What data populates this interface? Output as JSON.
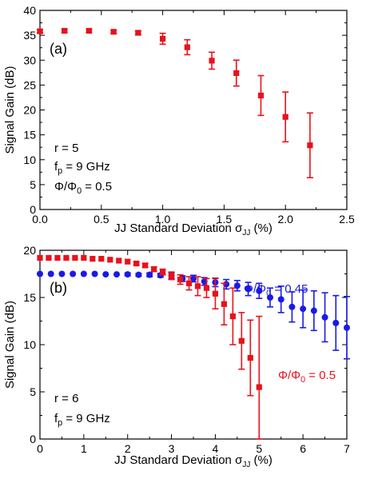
{
  "chart_data": [
    {
      "type": "scatter",
      "panel_label": "(a)",
      "xlabel": "JJ Standard Deviation",
      "xlabel_symbol": "σ",
      "xlabel_sub": "JJ",
      "xlabel_unit": "(%)",
      "ylabel": "Signal Gain (dB)",
      "xlim": [
        0,
        2.5
      ],
      "ylim": [
        0,
        40
      ],
      "xticks": [
        0,
        0.5,
        1.0,
        1.5,
        2.0,
        2.5
      ],
      "xtick_labels": [
        "0.0",
        "0.5",
        "1.0",
        "1.5",
        "2.0",
        "2.5"
      ],
      "yticks": [
        0,
        5,
        10,
        15,
        20,
        25,
        30,
        35,
        40
      ],
      "ytick_labels": [
        "0",
        "5",
        "10",
        "15",
        "20",
        "25",
        "30",
        "35",
        "40"
      ],
      "annotations": [
        {
          "text": "r = 5"
        },
        {
          "text": "f",
          "sub": "p",
          "rest": " = 9 GHz"
        },
        {
          "text": "Φ/Φ",
          "sub": "0",
          "rest": " = 0.5"
        }
      ],
      "series": [
        {
          "marker": "square",
          "color": "#e8121b",
          "x": [
            0.0,
            0.2,
            0.4,
            0.6,
            0.8,
            1.0,
            1.2,
            1.4,
            1.6,
            1.8,
            2.0,
            2.2
          ],
          "y": [
            35.8,
            35.9,
            35.9,
            35.7,
            35.5,
            34.3,
            32.6,
            29.9,
            27.4,
            22.9,
            18.6,
            12.9
          ],
          "err": [
            0.3,
            0.3,
            0.3,
            0.3,
            0.4,
            1.1,
            1.5,
            1.7,
            2.6,
            4.0,
            5.0,
            6.5
          ]
        }
      ]
    },
    {
      "type": "scatter",
      "panel_label": "(b)",
      "xlabel": "JJ Standard Deviation",
      "xlabel_symbol": "σ",
      "xlabel_sub": "JJ",
      "xlabel_unit": "(%)",
      "ylabel": "Signal Gain (dB)",
      "xlim": [
        0,
        7
      ],
      "ylim": [
        0,
        20
      ],
      "xticks": [
        0,
        1,
        2,
        3,
        4,
        5,
        6,
        7
      ],
      "xtick_labels": [
        "0",
        "1",
        "2",
        "3",
        "4",
        "5",
        "6",
        "7"
      ],
      "yticks": [
        0,
        5,
        10,
        15,
        20
      ],
      "ytick_labels": [
        "0",
        "5",
        "10",
        "15",
        "20"
      ],
      "annotations": [
        {
          "text": "r = 6"
        },
        {
          "text": "f",
          "sub": "p",
          "rest": " = 9 GHz"
        }
      ],
      "series": [
        {
          "name_main": "Φ/Φ",
          "name_sub": "0",
          "name_rest": " = 0.45",
          "marker": "circle",
          "color": "#1a1ae6",
          "x": [
            0.0,
            0.25,
            0.5,
            0.75,
            1.0,
            1.25,
            1.5,
            1.75,
            2.0,
            2.25,
            2.5,
            2.75,
            3.0,
            3.25,
            3.5,
            3.75,
            4.0,
            4.25,
            4.5,
            4.75,
            5.0,
            5.25,
            5.5,
            5.75,
            6.0,
            6.25,
            6.5,
            6.75,
            7.0
          ],
          "y": [
            17.5,
            17.5,
            17.5,
            17.5,
            17.5,
            17.5,
            17.45,
            17.45,
            17.45,
            17.4,
            17.4,
            17.35,
            17.3,
            17.0,
            17.0,
            16.7,
            16.6,
            16.4,
            16.25,
            15.9,
            15.7,
            15.0,
            14.8,
            14.0,
            13.8,
            13.6,
            12.9,
            12.3,
            11.8
          ],
          "err": [
            0.1,
            0.1,
            0.1,
            0.1,
            0.1,
            0.1,
            0.1,
            0.1,
            0.15,
            0.15,
            0.2,
            0.2,
            0.3,
            0.3,
            0.35,
            0.4,
            0.45,
            0.5,
            0.55,
            0.7,
            0.8,
            1.0,
            1.4,
            1.6,
            2.0,
            2.1,
            2.6,
            2.9,
            3.3
          ]
        },
        {
          "name_main": "Φ/Φ",
          "name_sub": "0",
          "name_rest": " = 0.5",
          "marker": "square",
          "color": "#e8121b",
          "x": [
            0.0,
            0.2,
            0.4,
            0.6,
            0.8,
            1.0,
            1.2,
            1.4,
            1.6,
            1.8,
            2.0,
            2.2,
            2.4,
            2.6,
            2.8,
            3.0,
            3.2,
            3.4,
            3.6,
            3.8,
            4.0,
            4.2,
            4.4,
            4.6,
            4.8,
            5.0
          ],
          "y": [
            19.2,
            19.2,
            19.2,
            19.2,
            19.2,
            19.2,
            19.1,
            19.1,
            19.0,
            18.9,
            18.8,
            18.6,
            18.4,
            18.0,
            17.7,
            17.3,
            16.9,
            16.5,
            16.2,
            16.0,
            15.4,
            14.3,
            13.0,
            10.4,
            8.6,
            5.5
          ],
          "err": [
            0.05,
            0.05,
            0.05,
            0.05,
            0.05,
            0.05,
            0.05,
            0.05,
            0.1,
            0.1,
            0.1,
            0.15,
            0.2,
            0.25,
            0.3,
            0.4,
            0.5,
            0.7,
            1.0,
            1.0,
            1.6,
            2.2,
            3.0,
            3.0,
            4.0,
            7.5
          ]
        }
      ]
    }
  ]
}
